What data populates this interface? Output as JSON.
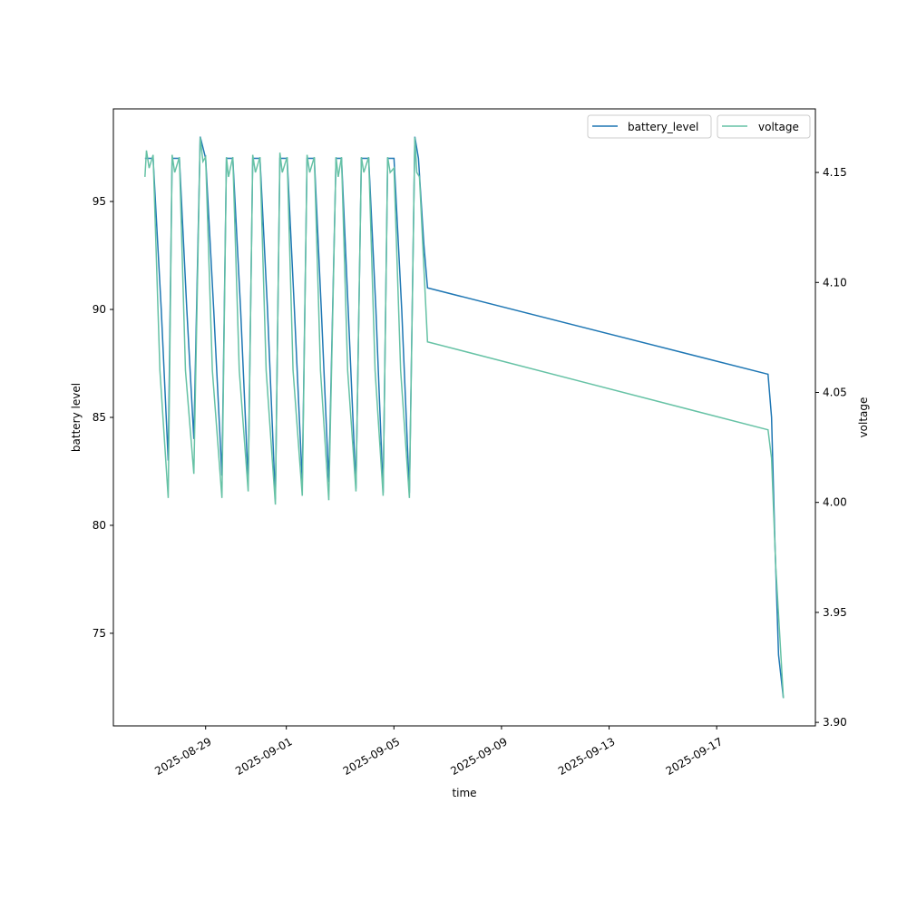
{
  "chart_data": {
    "type": "line",
    "x_origin": "2025-08-29",
    "x_unit": "days since x_origin",
    "xlim": [
      -3.43,
      22.67
    ],
    "xlabel": "time",
    "xticks": [
      {
        "v": 0,
        "label": "2025-08-29"
      },
      {
        "v": 3,
        "label": "2025-09-01"
      },
      {
        "v": 7,
        "label": "2025-09-05"
      },
      {
        "v": 11,
        "label": "2025-09-09"
      },
      {
        "v": 15,
        "label": "2025-09-13"
      },
      {
        "v": 19,
        "label": "2025-09-17"
      }
    ],
    "left_axis": {
      "label": "battery level",
      "ylim": [
        70.71,
        99.29
      ],
      "ticks": [
        75,
        80,
        85,
        90,
        95
      ]
    },
    "right_axis": {
      "label": "voltage",
      "ylim": [
        3.8984,
        4.1789
      ],
      "ticks": [
        "3.90",
        "3.95",
        "4.00",
        "4.05",
        "4.10",
        "4.15"
      ]
    },
    "series": [
      {
        "name": "battery_level",
        "axis": "left",
        "color": "#1f77b4",
        "points": [
          [
            -2.256,
            97
          ],
          [
            -1.953,
            97
          ],
          [
            -1.65,
            90
          ],
          [
            -1.391,
            83
          ],
          [
            -1.246,
            97
          ],
          [
            -0.976,
            97
          ],
          [
            -0.7,
            90
          ],
          [
            -0.438,
            84
          ],
          [
            -0.202,
            98
          ],
          [
            0,
            97
          ],
          [
            0.3,
            90
          ],
          [
            0.606,
            82.3
          ],
          [
            0.774,
            97
          ],
          [
            1.01,
            97
          ],
          [
            1.3,
            90
          ],
          [
            1.582,
            82
          ],
          [
            1.751,
            97
          ],
          [
            2.02,
            97
          ],
          [
            2.3,
            90
          ],
          [
            2.593,
            81.2
          ],
          [
            2.761,
            97
          ],
          [
            3.03,
            97
          ],
          [
            3.3,
            90
          ],
          [
            3.593,
            82
          ],
          [
            3.771,
            97
          ],
          [
            4.04,
            97
          ],
          [
            4.3,
            90
          ],
          [
            4.579,
            82
          ],
          [
            4.848,
            97
          ],
          [
            5.051,
            97
          ],
          [
            5.3,
            90
          ],
          [
            5.589,
            81.7
          ],
          [
            5.791,
            97
          ],
          [
            6.061,
            97
          ],
          [
            6.33,
            90
          ],
          [
            6.599,
            81.5
          ],
          [
            6.768,
            97
          ],
          [
            7.003,
            97
          ],
          [
            7.29,
            90
          ],
          [
            7.576,
            81.5
          ],
          [
            7.778,
            98
          ],
          [
            7.912,
            97
          ],
          [
            8.114,
            93
          ],
          [
            8.249,
            91
          ],
          [
            20.909,
            87
          ],
          [
            21.04,
            85
          ],
          [
            21.17,
            79
          ],
          [
            21.3,
            74
          ],
          [
            21.48,
            72
          ]
        ]
      },
      {
        "name": "voltage",
        "axis": "right",
        "color": "#66c2a5",
        "points": [
          [
            -2.256,
            4.148
          ],
          [
            -2.2,
            4.16
          ],
          [
            -2.1,
            4.152
          ],
          [
            -1.953,
            4.158
          ],
          [
            -1.7,
            4.06
          ],
          [
            -1.391,
            4.002
          ],
          [
            -1.246,
            4.158
          ],
          [
            -1.15,
            4.15
          ],
          [
            -0.976,
            4.157
          ],
          [
            -0.75,
            4.06
          ],
          [
            -0.438,
            4.013
          ],
          [
            -0.202,
            4.166
          ],
          [
            -0.1,
            4.155
          ],
          [
            0,
            4.157
          ],
          [
            0.25,
            4.06
          ],
          [
            0.606,
            4.002
          ],
          [
            0.774,
            4.157
          ],
          [
            0.85,
            4.148
          ],
          [
            1.01,
            4.157
          ],
          [
            1.25,
            4.06
          ],
          [
            1.582,
            4.005
          ],
          [
            1.751,
            4.158
          ],
          [
            1.85,
            4.15
          ],
          [
            2.02,
            4.157
          ],
          [
            2.25,
            4.06
          ],
          [
            2.593,
            3.999
          ],
          [
            2.761,
            4.159
          ],
          [
            2.85,
            4.15
          ],
          [
            3.03,
            4.157
          ],
          [
            3.25,
            4.06
          ],
          [
            3.593,
            4.003
          ],
          [
            3.771,
            4.158
          ],
          [
            3.87,
            4.15
          ],
          [
            4.04,
            4.157
          ],
          [
            4.27,
            4.06
          ],
          [
            4.579,
            4.001
          ],
          [
            4.848,
            4.157
          ],
          [
            4.93,
            4.148
          ],
          [
            5.051,
            4.157
          ],
          [
            5.28,
            4.06
          ],
          [
            5.589,
            4.005
          ],
          [
            5.791,
            4.157
          ],
          [
            5.88,
            4.15
          ],
          [
            6.061,
            4.157
          ],
          [
            6.3,
            4.06
          ],
          [
            6.599,
            4.003
          ],
          [
            6.768,
            4.157
          ],
          [
            6.86,
            4.15
          ],
          [
            7.003,
            4.152
          ],
          [
            7.25,
            4.06
          ],
          [
            7.576,
            4.002
          ],
          [
            7.778,
            4.166
          ],
          [
            7.85,
            4.15
          ],
          [
            7.95,
            4.148
          ],
          [
            8.249,
            4.073
          ],
          [
            20.909,
            4.033
          ],
          [
            21.04,
            4.02
          ],
          [
            21.2,
            3.97
          ],
          [
            21.48,
            3.911
          ]
        ]
      }
    ],
    "legends": [
      {
        "entries": [
          "battery_level"
        ],
        "placement": "top-right"
      },
      {
        "entries": [
          "voltage"
        ],
        "placement": "top-right"
      }
    ]
  }
}
